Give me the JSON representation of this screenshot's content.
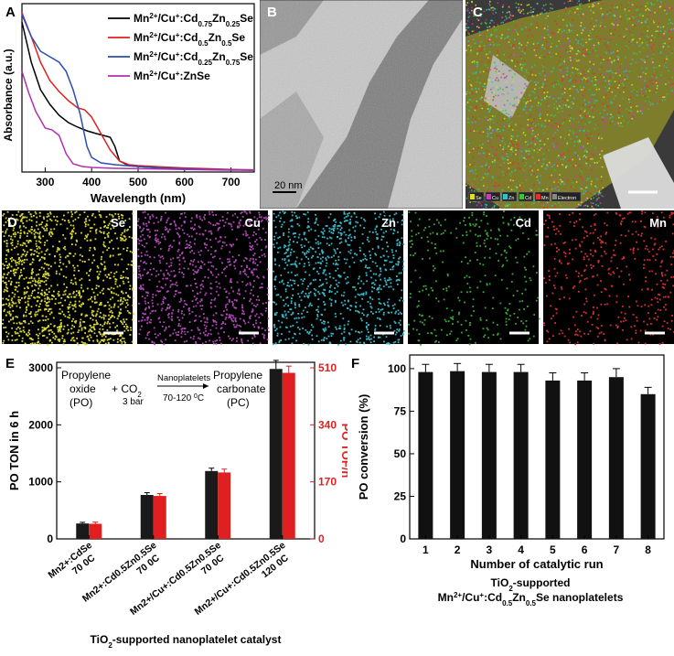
{
  "panels": {
    "a": {
      "letter": "A",
      "chart_data": {
        "type": "line",
        "xlabel": "Wavelength (nm)",
        "ylabel": "Absorbance (a.u.)",
        "xlim": [
          250,
          750
        ],
        "xticks": [
          300,
          400,
          500,
          600,
          700
        ],
        "series": [
          {
            "name": "Mn2+/Cu+:Cd0.75Zn0.25Se",
            "color": "#000000",
            "x": [
              250,
              270,
              290,
              310,
              330,
              350,
              370,
              390,
              410,
              425,
              440,
              450,
              460,
              480,
              500,
              550,
              600,
              650,
              700,
              750
            ],
            "y": [
              0.82,
              0.6,
              0.45,
              0.37,
              0.31,
              0.27,
              0.245,
              0.225,
              0.21,
              0.2,
              0.19,
              0.14,
              0.06,
              0.035,
              0.03,
              0.022,
              0.018,
              0.014,
              0.012,
              0.01
            ]
          },
          {
            "name": "Mn2+/Cu+:Cd0.5Zn0.5Se",
            "color": "#e02020",
            "x": [
              250,
              270,
              290,
              310,
              330,
              350,
              370,
              385,
              400,
              420,
              440,
              460,
              480,
              500,
              550,
              600,
              650,
              700,
              750
            ],
            "y": [
              0.87,
              0.74,
              0.6,
              0.5,
              0.44,
              0.39,
              0.35,
              0.34,
              0.3,
              0.21,
              0.12,
              0.06,
              0.04,
              0.035,
              0.028,
              0.022,
              0.018,
              0.014,
              0.012
            ]
          },
          {
            "name": "Mn2+/Cu+:Cd0.25Zn0.75Se",
            "color": "#2a4fb0",
            "x": [
              250,
              270,
              290,
              310,
              330,
              345,
              360,
              375,
              390,
              400,
              420,
              450,
              500,
              550,
              600,
              650,
              700,
              750
            ],
            "y": [
              0.86,
              0.74,
              0.66,
              0.63,
              0.6,
              0.55,
              0.45,
              0.32,
              0.14,
              0.08,
              0.05,
              0.04,
              0.03,
              0.022,
              0.018,
              0.014,
              0.012,
              0.01
            ]
          },
          {
            "name": "Mn2+/Cu+:ZnSe",
            "color": "#b030b0",
            "x": [
              250,
              265,
              280,
              300,
              315,
              330,
              345,
              360,
              380,
              400,
              450,
              500,
              550,
              600,
              650,
              700,
              750
            ],
            "y": [
              0.55,
              0.43,
              0.33,
              0.24,
              0.23,
              0.2,
              0.1,
              0.045,
              0.03,
              0.025,
              0.02,
              0.018,
              0.016,
              0.014,
              0.012,
              0.01,
              0.01
            ]
          }
        ],
        "legend_placement": "top-right"
      },
      "legend": [
        {
          "pre": "Mn",
          "s1": "2+",
          "m1": "/Cu",
          "s2": "+",
          "m2": ":Cd",
          "s3": "0.75",
          "m3": "Zn",
          "s4": "0.25",
          "post": "Se"
        },
        {
          "pre": "Mn",
          "s1": "2+",
          "m1": "/Cu",
          "s2": "+",
          "m2": ":Cd",
          "s3": "0.5",
          "m3": "Zn",
          "s4": "0.5",
          "post": "Se"
        },
        {
          "pre": "Mn",
          "s1": "2+",
          "m1": "/Cu",
          "s2": "+",
          "m2": ":Cd",
          "s3": "0.25",
          "m3": "Zn",
          "s4": "0.75",
          "post": "Se"
        },
        {
          "pre": "Mn",
          "s1": "2+",
          "m1": "/Cu",
          "s2": "+",
          "m2": ":ZnSe",
          "s3": "",
          "m3": "",
          "s4": "",
          "post": ""
        }
      ]
    },
    "b": {
      "letter": "B",
      "scale_label": "20 nm"
    },
    "c": {
      "letter": "C",
      "legend_items": [
        "Se",
        "Cu",
        "Zn",
        "Cd",
        "Mn",
        "Electron"
      ]
    },
    "d": {
      "letter": "D",
      "maps": [
        {
          "label": "Se",
          "color": "#d8d838",
          "density": 1500
        },
        {
          "label": "Cu",
          "color": "#b048b8",
          "density": 900
        },
        {
          "label": "Zn",
          "color": "#38b8c8",
          "density": 900
        },
        {
          "label": "Cd",
          "color": "#38a838",
          "density": 320
        },
        {
          "label": "Mn",
          "color": "#d83030",
          "density": 420
        }
      ]
    },
    "e": {
      "letter": "E",
      "chart_data": {
        "type": "bar",
        "categories": [
          "Mn2+:CdSe 70 0C",
          "Mn2+:Cd0.5Zn0.5Se 70 0C",
          "Mn2+/Cu+:Cd0.5Zn0.5Se 70 0C",
          "Mn2+/Cu+:Cd0.5Zn0.5Se 120 0C"
        ],
        "series": [
          {
            "name": "PO TON in 6 h",
            "color": "#1a1a1a",
            "values": [
              270,
              770,
              1190,
              2980
            ],
            "errors": [
              20,
              40,
              50,
              150
            ]
          },
          {
            "name": "PO TOF/h",
            "color": "#e02020",
            "values": [
              45,
              128,
              198,
              495
            ],
            "errors": [
              5,
              7,
              10,
              20
            ]
          }
        ],
        "ylabel": "PO TON in 6 h",
        "y2label": "PO TOF/h",
        "ylim": [
          0,
          3000
        ],
        "y2lim": [
          0,
          510
        ],
        "yticks": [
          0,
          1000,
          2000,
          3000
        ],
        "y2ticks": [
          0,
          170,
          340,
          510
        ],
        "xlabel": "TiO2-supported nanoplatelet catalyst"
      },
      "tick_labels": [
        {
          "l1": "Mn2+:CdSe",
          "l2": "70 0C"
        },
        {
          "l1": "Mn2+:Cd0.5Zn0.5Se",
          "l2": "70 0C"
        },
        {
          "l1": "Mn2+/Cu+:Cd0.5Zn0.5Se",
          "l2": "70 0C"
        },
        {
          "l1": "Mn2+/Cu+:Cd0.5Zn0.5Se",
          "l2": "120 0C"
        }
      ],
      "reaction": {
        "reactant1": "Propylene",
        "reactant2": "oxide",
        "reactant3": "(PO)",
        "plus": "+ CO",
        "plus_sub": "2",
        "pressure": "3 bar",
        "catalyst": "Nanoplatelets",
        "temp": "70-120",
        "temp_unit": "0",
        "temp_c": "C",
        "product1": "Propylene",
        "product2": "carbonate",
        "product3": "(PC)"
      },
      "xcap_main": "TiO",
      "xcap_sub": "2",
      "xcap_rest": "-supported nanoplatelet catalyst"
    },
    "f": {
      "letter": "F",
      "chart_data": {
        "type": "bar",
        "categories": [
          "1",
          "2",
          "3",
          "4",
          "5",
          "6",
          "7",
          "8"
        ],
        "values": [
          98,
          98.5,
          98,
          98,
          93,
          93,
          95,
          85
        ],
        "errors": [
          4.5,
          4.5,
          4.5,
          4.5,
          4.5,
          4.5,
          5,
          4
        ],
        "xlabel": "Number of catalytic run",
        "ylabel": "PO conversion (%)",
        "ylim": [
          0,
          108
        ],
        "yticks": [
          0,
          25,
          50,
          75,
          100
        ]
      },
      "cap1_a": "TiO",
      "cap1_sub": "2",
      "cap1_b": "-supported",
      "cap2": {
        "pre": "Mn",
        "s1": "2+",
        "m1": "/Cu",
        "s2": "+",
        "m2": ":Cd",
        "s3": "0.5",
        "m3": "Zn",
        "s4": "0.5",
        "post": "Se nanoplatelets"
      }
    }
  }
}
